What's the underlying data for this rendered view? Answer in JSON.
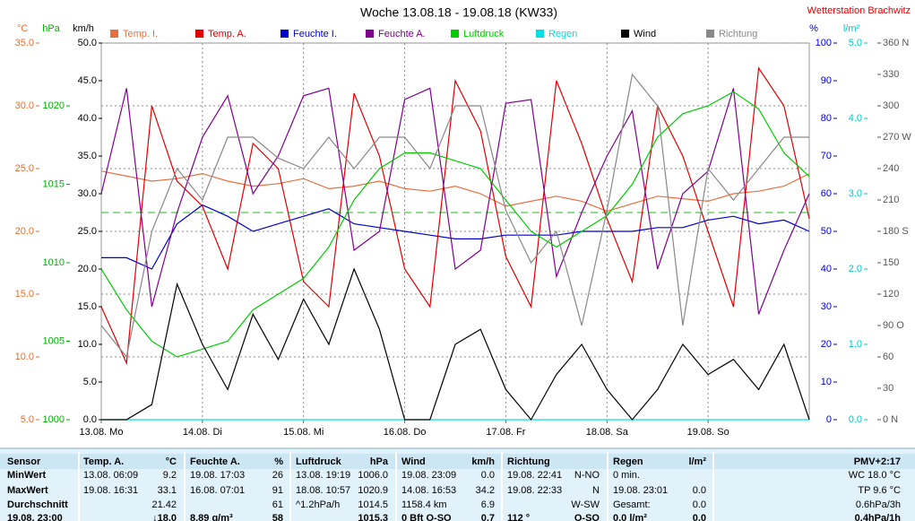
{
  "chart_data": {
    "type": "line",
    "title": "Woche 13.08.18 - 19.08.18 (KW33)",
    "station": "Wetterstation Brachwitz",
    "grid": true,
    "xlim": [
      0,
      168
    ],
    "xticks": [
      {
        "value": 0,
        "label": "13.08.  Mo"
      },
      {
        "value": 24,
        "label": "14.08.  Di"
      },
      {
        "value": 48,
        "label": "15.08.  Mi"
      },
      {
        "value": 72,
        "label": "16.08.  Do"
      },
      {
        "value": 96,
        "label": "17.08.  Fr"
      },
      {
        "value": 120,
        "label": "18.08.  Sa"
      },
      {
        "value": 144,
        "label": "19.08.  So"
      }
    ],
    "x": [
      0,
      6,
      12,
      18,
      24,
      30,
      36,
      42,
      48,
      54,
      60,
      66,
      72,
      78,
      84,
      90,
      96,
      102,
      108,
      114,
      120,
      126,
      132,
      138,
      144,
      150,
      156,
      162,
      168
    ],
    "axes": [
      {
        "label": "°C",
        "color": "#e87030",
        "lim": [
          5,
          35
        ],
        "ticks": [
          {
            "value": 35,
            "label": "35.0"
          },
          {
            "value": 30,
            "label": "30.0"
          },
          {
            "value": 25,
            "label": "25.0"
          },
          {
            "value": 20,
            "label": "20.0"
          },
          {
            "value": 15,
            "label": "15.0"
          },
          {
            "value": 10,
            "label": "10.0"
          },
          {
            "value": 5,
            "label": "5.0"
          }
        ]
      },
      {
        "label": "hPa",
        "color": "#00b000",
        "lim": [
          1000,
          1024
        ],
        "ticks": [
          1020,
          1015,
          1010,
          1005,
          1000
        ]
      },
      {
        "label": "km/h",
        "color": "#000000",
        "lim": [
          0,
          50
        ],
        "ticks": [
          {
            "value": 50,
            "label": "50.0"
          },
          {
            "value": 45,
            "label": "45.0"
          },
          {
            "value": 40,
            "label": "40.0"
          },
          {
            "value": 35,
            "label": "35.0"
          },
          {
            "value": 30,
            "label": "30.0"
          },
          {
            "value": 25,
            "label": "25.0"
          },
          {
            "value": 20,
            "label": "20.0"
          },
          {
            "value": 15,
            "label": "15.0"
          },
          {
            "value": 10,
            "label": "10.0"
          },
          {
            "value": 5,
            "label": "5.0"
          },
          {
            "value": 0,
            "label": "0.0"
          }
        ]
      },
      {
        "label": "%",
        "color": "#0000cc",
        "lim": [
          0,
          100
        ],
        "ticks": [
          100,
          90,
          80,
          70,
          60,
          50,
          40,
          30,
          20,
          10,
          0
        ]
      },
      {
        "label": "l/m²",
        "color": "#00c8c8",
        "lim": [
          0,
          5
        ],
        "ticks": [
          {
            "value": 5,
            "label": "5.0"
          },
          {
            "value": 4,
            "label": "4.0"
          },
          {
            "value": 3,
            "label": "3.0"
          },
          {
            "value": 2,
            "label": "2.0"
          },
          {
            "value": 1,
            "label": "1.0"
          },
          {
            "value": 0,
            "label": "0.0"
          }
        ]
      },
      {
        "color": "#555555",
        "lim": [
          0,
          360
        ],
        "ticks": [
          {
            "value": 360,
            "label": "360 N"
          },
          330,
          300,
          {
            "value": 270,
            "label": "270 W"
          },
          240,
          210,
          {
            "value": 180,
            "label": "180 S"
          },
          150,
          120,
          {
            "value": 90,
            "label": "90  O"
          },
          60,
          30,
          {
            "value": 0,
            "label": "0  N"
          }
        ]
      }
    ],
    "series": [
      {
        "name": "Temp. I.",
        "color": "#e87040",
        "axis": 0,
        "values": [
          24.8,
          24.4,
          24.0,
          24.2,
          24.6,
          24.0,
          23.6,
          23.8,
          24.2,
          23.4,
          23.6,
          24.0,
          23.4,
          23.2,
          23.6,
          23.0,
          22.0,
          22.4,
          22.8,
          22.4,
          21.6,
          22.2,
          22.8,
          22.6,
          22.4,
          23.0,
          23.2,
          23.6,
          24.6
        ]
      },
      {
        "name": "Temp. A.",
        "color": "#e00000",
        "axis": 0,
        "values": [
          14,
          9.5,
          30,
          24,
          22,
          17,
          27,
          25,
          16,
          14,
          31,
          26,
          17,
          14,
          32,
          28,
          18,
          14,
          32,
          27,
          21,
          16,
          30,
          26,
          20,
          14,
          33,
          30,
          21
        ]
      },
      {
        "name": "Feuchte I.",
        "color": "#0000cc",
        "axis": 3,
        "values": [
          43,
          43,
          40,
          52,
          57,
          54,
          50,
          52,
          54,
          56,
          52,
          51,
          50,
          49,
          48,
          48,
          49,
          49,
          49,
          50,
          50,
          50,
          51,
          51,
          53,
          54,
          52,
          53,
          50
        ]
      },
      {
        "name": "Feuchte A.",
        "color": "#800090",
        "axis": 3,
        "values": [
          60,
          88,
          30,
          55,
          75,
          86,
          60,
          70,
          86,
          88,
          45,
          50,
          85,
          88,
          40,
          45,
          84,
          85,
          38,
          55,
          70,
          82,
          40,
          60,
          66,
          88,
          28,
          45,
          60
        ]
      },
      {
        "name": "Luftdruck",
        "color": "#00cc00",
        "axis": 1,
        "values": [
          1009.6,
          1007,
          1005,
          1004,
          1004.5,
          1005,
          1007,
          1008,
          1009,
          1011,
          1014,
          1016,
          1017,
          1017,
          1016.5,
          1016,
          1014,
          1012,
          1011,
          1012,
          1013,
          1015,
          1018,
          1019.5,
          1020,
          1020.9,
          1019.8,
          1017,
          1015.5
        ]
      },
      {
        "name": "Regen",
        "color": "#00e0e0",
        "axis": 4,
        "values": [
          0,
          0,
          0,
          0,
          0,
          0,
          0,
          0,
          0,
          0,
          0,
          0,
          0,
          0,
          0,
          0,
          0,
          0,
          0,
          0,
          0,
          0,
          0,
          0,
          0,
          0,
          0,
          0,
          0
        ]
      },
      {
        "name": "Wind",
        "color": "#000000",
        "axis": 2,
        "values": [
          0,
          0,
          2,
          18,
          10,
          4,
          14,
          8,
          16,
          10,
          20,
          12,
          0,
          0,
          10,
          12,
          4,
          0,
          6,
          10,
          4,
          0,
          4,
          10,
          6,
          8,
          4,
          10,
          0
        ]
      },
      {
        "name": "Richtung",
        "color": "#888888",
        "axis": 5,
        "values": [
          90,
          60,
          180,
          240,
          210,
          270,
          270,
          250,
          240,
          270,
          240,
          270,
          270,
          240,
          300,
          300,
          200,
          150,
          180,
          90,
          200,
          330,
          300,
          90,
          240,
          210,
          240,
          270,
          270
        ]
      }
    ]
  },
  "table": {
    "rows": [
      [
        "Sensor",
        "Temp. A.",
        "°C",
        "Feuchte A.",
        "%",
        "Luftdruck",
        "hPa",
        "Wind",
        "km/h",
        "Richtung",
        null,
        "Regen",
        "l/m²",
        "PMV+2:17"
      ],
      [
        "MinWert",
        "13.08.  06:09",
        "9.2",
        "19.08.  17:03",
        "26",
        "13.08.  19:19",
        "1006.0",
        "19.08.  23:09",
        "0.0",
        "19.08.  22:41",
        "N-NO",
        "0 min.",
        null,
        "WC 18.0 °C"
      ],
      [
        "MaxWert",
        "19.08.  16:31",
        "33.1",
        "16.08.  07:01",
        "91",
        "18.08.  10:57",
        "1020.9",
        "14.08.  16:53",
        "34.2",
        "19.08.  22:33",
        "N",
        "19.08.  23:01",
        "0.0",
        "TP 9.6 °C"
      ],
      [
        "Durchschnitt",
        null,
        "21.42",
        null,
        "61",
        "^1.2hPa/h",
        "1014.5",
        "1158.4 km",
        "6.9",
        null,
        "W-SW",
        "Gesamt:",
        "0.0",
        "0.6hPa/3h"
      ],
      [
        "19.08.  23:00",
        null,
        "↓18.0",
        "8.89 g/m³",
        "58",
        null,
        "1015.3",
        "0 Bft O-SO",
        "0.7",
        "112 °",
        "O-SO",
        "0.0 l/m²",
        "0.0",
        "0.4hPa/1h"
      ]
    ]
  }
}
